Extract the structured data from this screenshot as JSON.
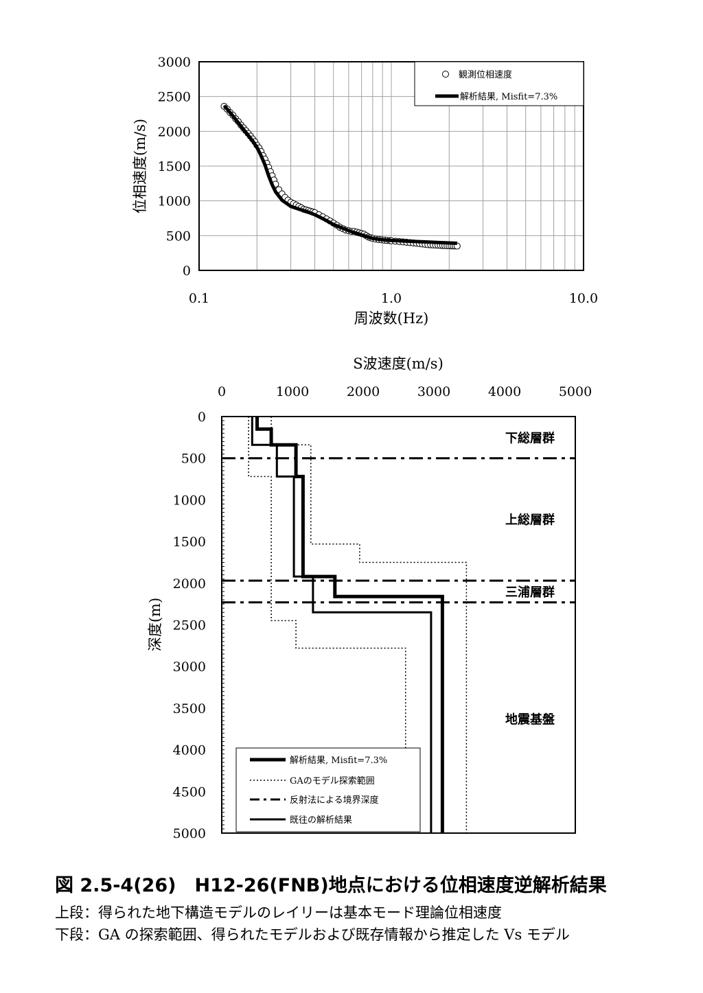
{
  "chart_data": [
    {
      "type": "scatter",
      "xlabel": "周波数(Hz)",
      "ylabel": "位相速度(m/s)",
      "xscale": "log",
      "xlim": [
        0.1,
        10.0
      ],
      "ylim": [
        0,
        3000
      ],
      "x_ticks": [
        "0.1",
        "1.0",
        "10.0"
      ],
      "y_ticks": [
        "0",
        "500",
        "1000",
        "1500",
        "2000",
        "2500",
        "3000"
      ],
      "grid": true,
      "legend": "top-right",
      "series": [
        {
          "name": "観測位相速度",
          "style": "open-circle",
          "x": [
            0.135,
            0.14,
            0.145,
            0.15,
            0.155,
            0.16,
            0.165,
            0.17,
            0.175,
            0.18,
            0.185,
            0.19,
            0.195,
            0.2,
            0.205,
            0.21,
            0.215,
            0.22,
            0.225,
            0.23,
            0.235,
            0.24,
            0.245,
            0.25,
            0.26,
            0.27,
            0.28,
            0.29,
            0.3,
            0.31,
            0.32,
            0.33,
            0.34,
            0.35,
            0.36,
            0.37,
            0.38,
            0.39,
            0.4,
            0.42,
            0.44,
            0.46,
            0.48,
            0.5,
            0.52,
            0.54,
            0.56,
            0.58,
            0.6,
            0.62,
            0.64,
            0.66,
            0.68,
            0.7,
            0.72,
            0.74,
            0.76,
            0.78,
            0.8,
            0.83,
            0.86,
            0.89,
            0.92,
            0.95,
            0.98,
            1.0,
            1.05,
            1.1,
            1.15,
            1.2,
            1.25,
            1.3,
            1.35,
            1.4,
            1.45,
            1.5,
            1.55,
            1.6,
            1.65,
            1.7,
            1.75,
            1.8,
            1.85,
            1.9,
            1.95,
            2.0,
            2.05,
            2.1,
            2.15,
            2.2
          ],
          "y": [
            2360,
            2320,
            2270,
            2230,
            2180,
            2140,
            2090,
            2050,
            2010,
            1970,
            1930,
            1890,
            1850,
            1800,
            1760,
            1710,
            1650,
            1600,
            1540,
            1480,
            1420,
            1360,
            1300,
            1240,
            1160,
            1100,
            1050,
            1010,
            980,
            960,
            940,
            920,
            900,
            880,
            870,
            860,
            850,
            840,
            830,
            800,
            770,
            740,
            710,
            680,
            650,
            620,
            600,
            580,
            570,
            560,
            560,
            550,
            540,
            530,
            520,
            500,
            480,
            470,
            460,
            450,
            445,
            440,
            435,
            430,
            428,
            425,
            420,
            415,
            410,
            405,
            400,
            395,
            390,
            385,
            380,
            375,
            370,
            368,
            366,
            364,
            362,
            360,
            358,
            356,
            355,
            354,
            353,
            352,
            351,
            350
          ]
        },
        {
          "name": "解析結果, Misfit=7.3%",
          "style": "line",
          "x": [
            0.135,
            0.15,
            0.17,
            0.19,
            0.2,
            0.21,
            0.22,
            0.23,
            0.24,
            0.25,
            0.27,
            0.3,
            0.33,
            0.36,
            0.4,
            0.45,
            0.5,
            0.6,
            0.7,
            0.8,
            0.9,
            1.0,
            1.2,
            1.5,
            1.8,
            2.0,
            2.2
          ],
          "y": [
            2370,
            2220,
            2030,
            1860,
            1770,
            1650,
            1520,
            1360,
            1230,
            1130,
            1010,
            920,
            880,
            850,
            800,
            730,
            660,
            570,
            510,
            460,
            440,
            430,
            420,
            410,
            400,
            395,
            390
          ]
        }
      ]
    },
    {
      "type": "line",
      "title": "S波速度(m/s)",
      "xlabel": "S波速度(m/s)",
      "ylabel": "深度(m)",
      "xlim": [
        0,
        5000
      ],
      "ylim": [
        0,
        5000
      ],
      "y_inverted": true,
      "x_ticks": [
        "0",
        "1000",
        "2000",
        "3000",
        "4000",
        "5000"
      ],
      "y_ticks": [
        "0",
        "500",
        "1000",
        "1500",
        "2000",
        "2500",
        "3000",
        "3500",
        "4000",
        "4500",
        "5000"
      ],
      "legend": "bottom-left",
      "series": [
        {
          "name": "解析結果, Misfit=7.3%",
          "style": "thick-solid",
          "depth_top": [
            0,
            150,
            340,
            720,
            1920,
            2160
          ],
          "vs": [
            500,
            700,
            1050,
            1150,
            1600,
            3120
          ]
        },
        {
          "name": "GAのモデル探索範囲",
          "style": "dotted",
          "depth_top": [
            0,
            340,
            720,
            1530,
            1750,
            2450,
            2780
          ],
          "vs_min": [
            380,
            380,
            700,
            700,
            700,
            1050,
            1050
          ],
          "vs_max": [
            700,
            1260,
            1260,
            1950,
            3460,
            3460,
            3460
          ],
          "vs_min_deep": [
            2600
          ]
        },
        {
          "name": "反射法による境界深度",
          "style": "dash-dot",
          "depths": [
            500,
            1970,
            2230
          ]
        },
        {
          "name": "既往の解析結果",
          "style": "solid",
          "depth_top": [
            0,
            340,
            720,
            1920,
            2350
          ],
          "vs": [
            430,
            780,
            1020,
            1290,
            2960
          ]
        }
      ],
      "zones": [
        {
          "label": "下総層群",
          "depth": 250
        },
        {
          "label": "上総層群",
          "depth": 1230
        },
        {
          "label": "三浦層群",
          "depth": 2100
        },
        {
          "label": "地震基盤",
          "depth": 3630
        }
      ]
    }
  ],
  "caption": {
    "title": "図 2.5-4(26)　H12-26(FNB)地点における位相速度逆解析結果",
    "line1": "上段：得られた地下構造モデルのレイリーは基本モード理論位相速度",
    "line2": "下段：GA の探索範囲、得られたモデルおよび既存情報から推定した Vs モデル"
  }
}
